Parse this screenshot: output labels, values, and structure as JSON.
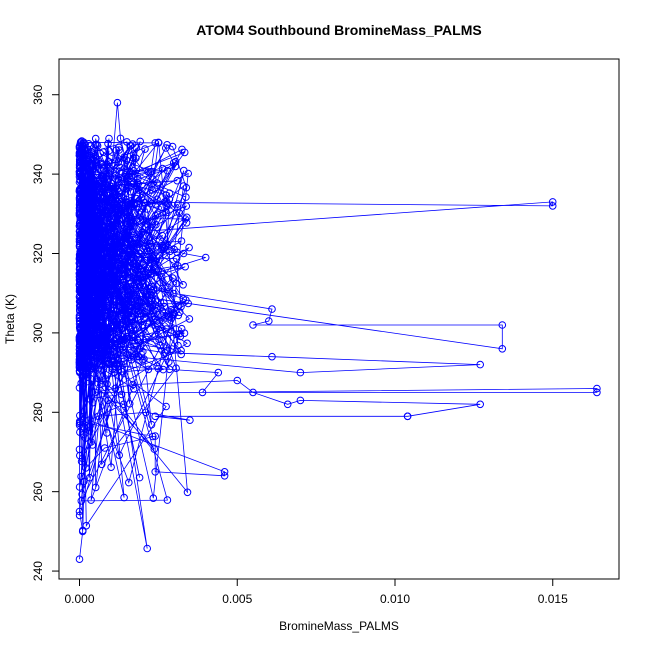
{
  "chart_data": {
    "type": "scatter",
    "title": "ATOM4 Southbound BromineMass_PALMS",
    "xlabel": "BromineMass_PALMS",
    "ylabel": "Theta (K)",
    "xlim": [
      -0.00065,
      0.0171
    ],
    "ylim": [
      238,
      369
    ],
    "xticks": [
      0.0,
      0.005,
      0.01,
      0.015
    ],
    "xtick_labels": [
      "0.000",
      "0.005",
      "0.010",
      "0.015"
    ],
    "yticks": [
      240,
      260,
      280,
      300,
      320,
      340,
      360
    ],
    "ytick_labels": [
      "240",
      "260",
      "280",
      "300",
      "320",
      "340",
      "360"
    ],
    "series_color": "#0000ff",
    "marker": "open-circle",
    "connect_points": true,
    "grid": false,
    "series": [
      {
        "name": "ATOM4 Southbound",
        "x": [
          0.0,
          0.0001,
          0.0,
          0.0002,
          0.0001,
          0.0,
          0.0003,
          0.0008,
          0.0012,
          0.0013,
          0.0016,
          0.0025,
          0.0023,
          0.0018,
          0.0015,
          0.002,
          0.0027,
          0.0033,
          0.003,
          0.0006,
          0.0009,
          0.015,
          0.015,
          0.001,
          0.0033,
          0.004,
          0.002,
          0.001,
          0.0003,
          0.0024,
          0.0018,
          0.0014,
          0.0061,
          0.006,
          0.0055,
          0.0134,
          0.0134,
          0.0012,
          0.0008,
          0.0019,
          0.0027,
          0.0061,
          0.0127,
          0.007,
          0.0004,
          0.0011,
          0.0025,
          0.0044,
          0.0039,
          0.0164,
          0.0164,
          0.0005,
          0.0017,
          0.005,
          0.0055,
          0.0066,
          0.007,
          0.0127,
          0.0104,
          0.0104,
          0.0024,
          0.0035,
          0.0021,
          0.0006,
          0.0009,
          0.0014,
          0.0003,
          0.0046,
          0.0046,
          0.0024,
          0.0024,
          0.0008,
          0.0002,
          0.0,
          0.0001,
          0.0
        ],
        "y": [
          340,
          346,
          330,
          322,
          338,
          315,
          300,
          320,
          358,
          349,
          339,
          348,
          336,
          337,
          326,
          332,
          333,
          337,
          321,
          328,
          333,
          332,
          333,
          325,
          320,
          319,
          314,
          316,
          304,
          307,
          307,
          312,
          306,
          303,
          302,
          302,
          296,
          310,
          297,
          296,
          295,
          294,
          292,
          290,
          295,
          290,
          291,
          290,
          285,
          286,
          285,
          285,
          287,
          288,
          285,
          282,
          283,
          282,
          279,
          279,
          279,
          278,
          280,
          279,
          283,
          282,
          278,
          265,
          264,
          265,
          274,
          271,
          266,
          255,
          250,
          243
        ]
      }
    ],
    "dense_band": {
      "note": "dense cluster of points at low BromineMass values",
      "x_range": [
        0.0,
        0.0035
      ],
      "y_range": [
        243,
        349
      ]
    }
  }
}
